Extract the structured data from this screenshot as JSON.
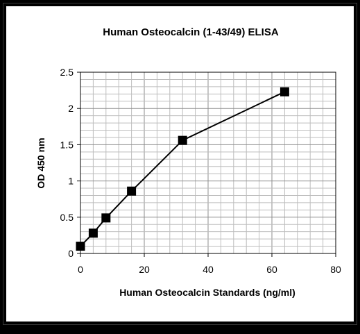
{
  "chart_data": {
    "type": "line",
    "title": "Human Osteocalcin (1-43/49) ELISA",
    "xlabel": "Human  Osteocalcin  Standards  (ng/ml)",
    "ylabel": "OD 450 nm",
    "xlim": [
      0,
      80
    ],
    "ylim": [
      0,
      2.5
    ],
    "x_ticks": [
      "0",
      "20",
      "40",
      "60",
      "80"
    ],
    "y_ticks": [
      "0",
      "0.5",
      "1",
      "1.5",
      "2",
      "2.5"
    ],
    "x_tick_values": [
      0,
      20,
      40,
      60,
      80
    ],
    "y_tick_values": [
      0,
      0.5,
      1,
      1.5,
      2,
      2.5
    ],
    "x_minor_step": 4,
    "y_minor_step": 0.1,
    "grid": true,
    "legend": "none",
    "marker": "square",
    "series": [
      {
        "x": [
          0,
          4,
          8,
          16,
          32,
          64
        ],
        "y": [
          0.1,
          0.28,
          0.49,
          0.86,
          1.56,
          2.23
        ]
      }
    ],
    "colors": {
      "line": "#000000",
      "marker": "#000000",
      "frame": "#000000"
    }
  }
}
